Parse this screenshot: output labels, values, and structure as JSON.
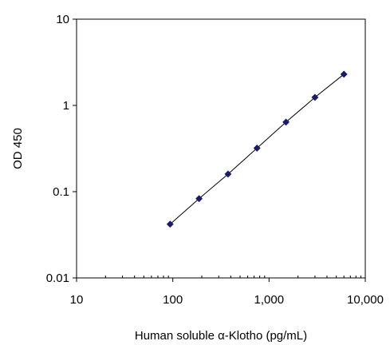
{
  "chart_data": {
    "type": "scatter",
    "title": "",
    "xlabel": "Human soluble α-Klotho (pg/mL)",
    "ylabel": "OD 450",
    "x_scale": "log",
    "y_scale": "log",
    "xlim": [
      10,
      10000
    ],
    "ylim": [
      0.01,
      10
    ],
    "x_ticks": [
      {
        "value": 10,
        "label": "10"
      },
      {
        "value": 100,
        "label": "100"
      },
      {
        "value": 1000,
        "label": "1,000"
      },
      {
        "value": 10000,
        "label": "10,000"
      }
    ],
    "y_ticks": [
      {
        "value": 10,
        "label": "10"
      },
      {
        "value": 1,
        "label": "1"
      },
      {
        "value": 0.1,
        "label": "0.1"
      },
      {
        "value": 0.01,
        "label": "0.01"
      }
    ],
    "grid": false,
    "legend": false,
    "series": [
      {
        "marker": "diamond",
        "color": "#1a1a6e",
        "line_color": "#000000",
        "x": [
          93.75,
          187.5,
          375,
          750,
          1500,
          3000,
          6000
        ],
        "y": [
          0.042,
          0.083,
          0.16,
          0.32,
          0.64,
          1.24,
          2.3
        ]
      }
    ]
  }
}
